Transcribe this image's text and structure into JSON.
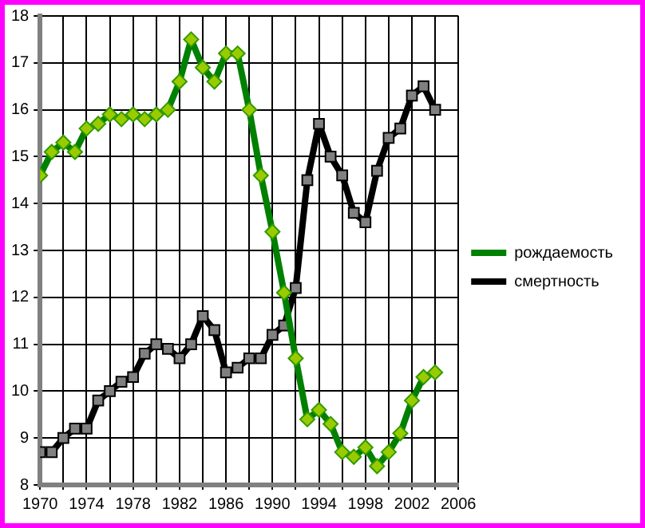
{
  "chart_data": {
    "type": "line",
    "x": [
      1970,
      1971,
      1972,
      1973,
      1974,
      1975,
      1976,
      1977,
      1978,
      1979,
      1980,
      1981,
      1982,
      1983,
      1984,
      1985,
      1986,
      1987,
      1988,
      1989,
      1990,
      1991,
      1992,
      1993,
      1994,
      1995,
      1996,
      1997,
      1998,
      1999,
      2000,
      2001,
      2002,
      2003,
      2004
    ],
    "series": [
      {
        "name": "рождаемость",
        "color": "#008000",
        "marker": "diamond",
        "values": [
          14.6,
          15.1,
          15.3,
          15.1,
          15.6,
          15.7,
          15.9,
          15.8,
          15.9,
          15.8,
          15.9,
          16.0,
          16.6,
          17.5,
          16.9,
          16.6,
          17.2,
          17.2,
          16.0,
          14.6,
          13.4,
          12.1,
          10.7,
          9.4,
          9.6,
          9.3,
          8.7,
          8.6,
          8.8,
          8.4,
          8.7,
          9.1,
          9.8,
          10.3,
          10.4
        ]
      },
      {
        "name": "смертность",
        "color": "#000000",
        "marker": "square",
        "values": [
          8.7,
          8.7,
          9.0,
          9.2,
          9.2,
          9.8,
          10.0,
          10.2,
          10.3,
          10.8,
          11.0,
          10.9,
          10.7,
          11.0,
          11.6,
          11.3,
          10.4,
          10.5,
          10.7,
          10.7,
          11.2,
          11.4,
          12.2,
          14.5,
          15.7,
          15.0,
          14.6,
          13.8,
          13.6,
          14.7,
          15.4,
          15.6,
          16.3,
          16.5,
          16.0
        ]
      }
    ],
    "xlim": [
      1970,
      2006
    ],
    "xticks": [
      1970,
      {
        "value": 1972,
        "label": null
      },
      1974,
      {
        "value": 1976,
        "label": null
      },
      1978,
      {
        "value": 1980,
        "label": null
      },
      1982,
      {
        "value": 1984,
        "label": null
      },
      1986,
      {
        "value": 1988,
        "label": null
      },
      1990,
      {
        "value": 1992,
        "label": null
      },
      1994,
      {
        "value": 1996,
        "label": null
      },
      1998,
      {
        "value": 2000,
        "label": null
      },
      2002,
      {
        "value": 2004,
        "label": null
      },
      2006
    ],
    "ylim": [
      8,
      18
    ],
    "yticks": [
      8,
      9,
      10,
      11,
      12,
      13,
      14,
      15,
      16,
      17,
      18
    ],
    "grid": true,
    "legend": "right"
  }
}
